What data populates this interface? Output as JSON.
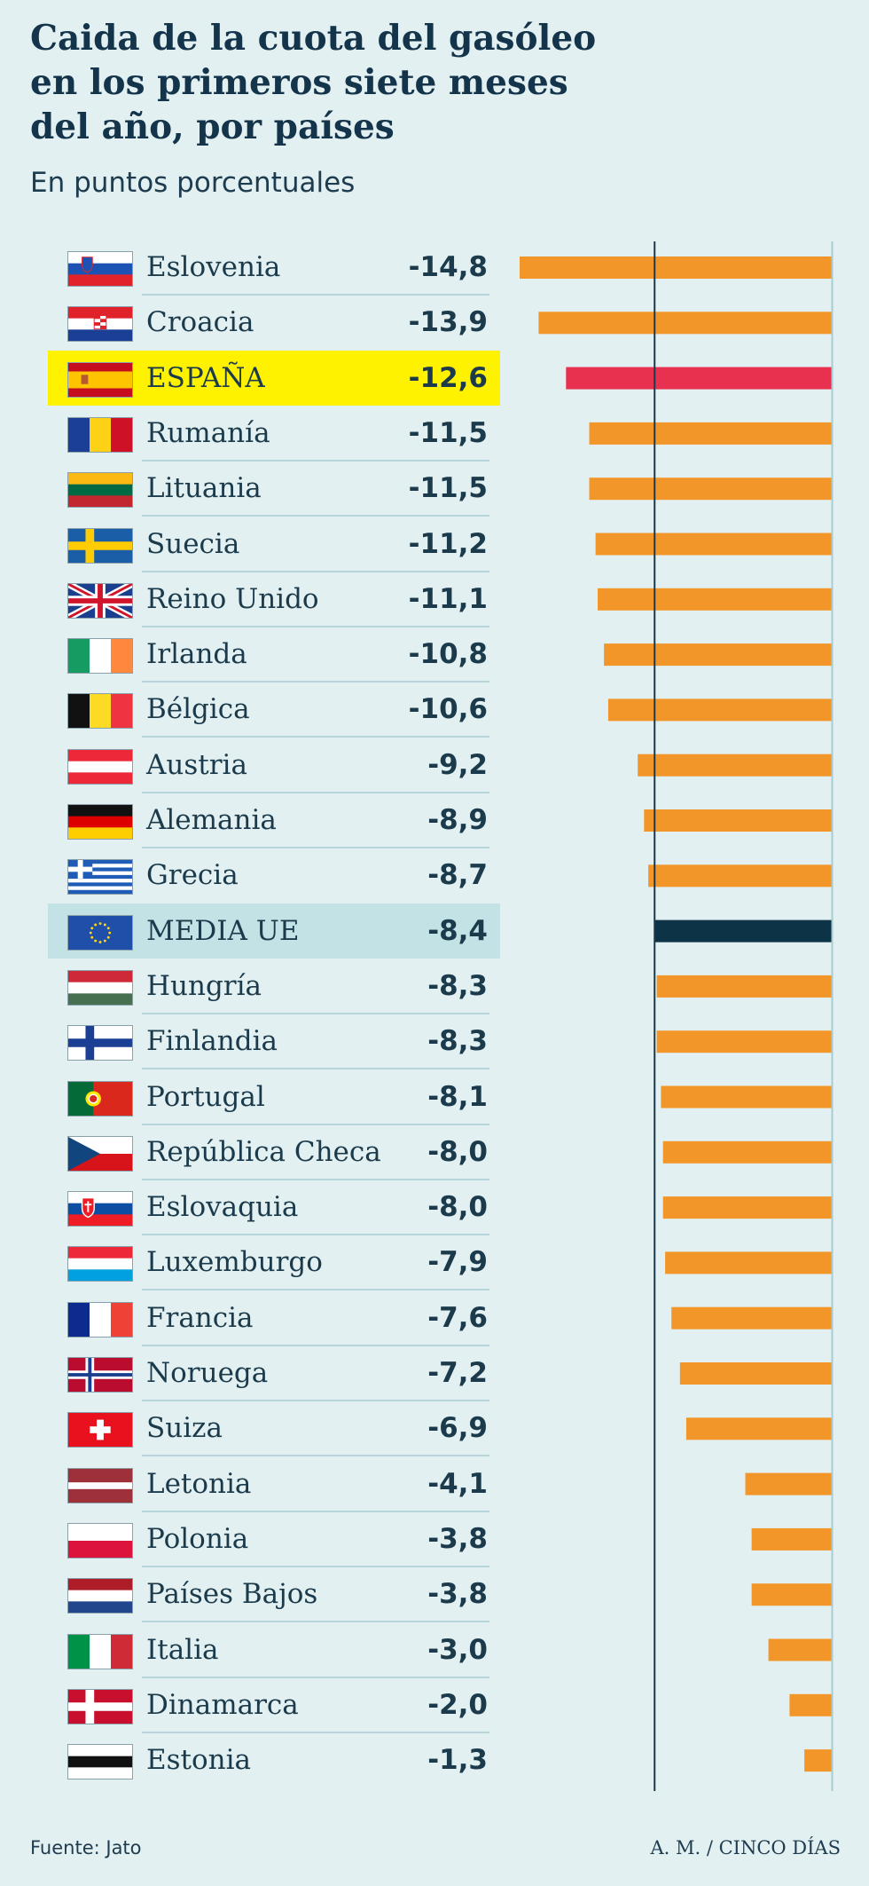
{
  "title": "Caida de la cuota del gasóleo\nen los primeros siete meses\ndel año, por países",
  "subtitle": "En puntos porcentuales",
  "footer": {
    "source": "Fuente: Jato",
    "credit": "A. M. / CINCO DÍAS"
  },
  "colors": {
    "bar": "#f39629",
    "spain": "#e8304f",
    "eu": "#0d3347",
    "highlight_spain": "#fff200",
    "highlight_eu": "#c3e2e6",
    "axis": "#1b3b4c"
  },
  "chart_data": {
    "type": "bar",
    "orientation": "horizontal",
    "title": "Caida de la cuota del gasóleo en los primeros siete meses del año, por países",
    "ylabel": "En puntos porcentuales",
    "xlim": [
      -14.8,
      0
    ],
    "reference_line": -8.4,
    "categories": [
      "Eslovenia",
      "Croacia",
      "ESPAÑA",
      "Rumanía",
      "Lituania",
      "Suecia",
      "Reino Unido",
      "Irlanda",
      "Bélgica",
      "Austria",
      "Alemania",
      "Grecia",
      "MEDIA UE",
      "Hungría",
      "Finlandia",
      "Portugal",
      "República Checa",
      "Eslovaquia",
      "Luxemburgo",
      "Francia",
      "Noruega",
      "Suiza",
      "Letonia",
      "Polonia",
      "Países Bajos",
      "Italia",
      "Dinamarca",
      "Estonia"
    ],
    "values": [
      -14.8,
      -13.9,
      -12.6,
      -11.5,
      -11.5,
      -11.2,
      -11.1,
      -10.8,
      -10.6,
      -9.2,
      -8.9,
      -8.7,
      -8.4,
      -8.3,
      -8.3,
      -8.1,
      -8.0,
      -8.0,
      -7.9,
      -7.6,
      -7.2,
      -6.9,
      -4.1,
      -3.8,
      -3.8,
      -3.0,
      -2.0,
      -1.3
    ],
    "labels": [
      "-14,8",
      "-13,9",
      "-12,6",
      "-11,5",
      "-11,5",
      "-11,2",
      "-11,1",
      "-10,8",
      "-10,6",
      "-9,2",
      "-8,9",
      "-8,7",
      "-8,4",
      "-8,3",
      "-8,3",
      "-8,1",
      "-8,0",
      "-8,0",
      "-7,9",
      "-7,6",
      "-7,2",
      "-6,9",
      "-4,1",
      "-3,8",
      "-3,8",
      "-3,0",
      "-2,0",
      "-1,3"
    ],
    "flags": [
      "slovenia-flag-icon",
      "croatia-flag-icon",
      "spain-flag-icon",
      "romania-flag-icon",
      "lithuania-flag-icon",
      "sweden-flag-icon",
      "uk-flag-icon",
      "ireland-flag-icon",
      "belgium-flag-icon",
      "austria-flag-icon",
      "germany-flag-icon",
      "greece-flag-icon",
      "eu-flag-icon",
      "hungary-flag-icon",
      "finland-flag-icon",
      "portugal-flag-icon",
      "czech-flag-icon",
      "slovakia-flag-icon",
      "luxembourg-flag-icon",
      "france-flag-icon",
      "norway-flag-icon",
      "switzerland-flag-icon",
      "latvia-flag-icon",
      "poland-flag-icon",
      "netherlands-flag-icon",
      "italy-flag-icon",
      "denmark-flag-icon",
      "estonia-flag-icon"
    ]
  }
}
